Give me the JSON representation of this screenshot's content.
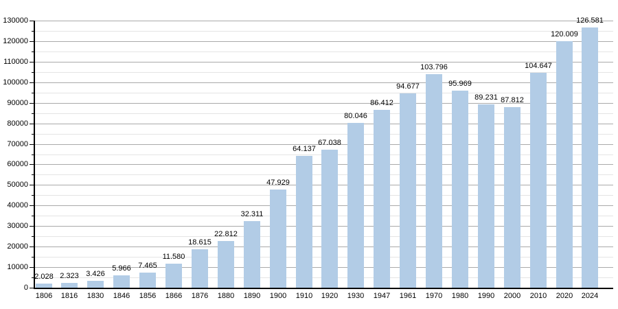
{
  "chart_data": {
    "type": "bar",
    "title": "",
    "xlabel": "",
    "ylabel": "",
    "categories": [
      "1806",
      "1816",
      "1830",
      "1846",
      "1856",
      "1866",
      "1876",
      "1880",
      "1890",
      "1900",
      "1910",
      "1920",
      "1930",
      "1947",
      "1961",
      "1970",
      "1980",
      "1990",
      "2000",
      "2010",
      "2020",
      "2024"
    ],
    "values": [
      2028,
      2323,
      3426,
      5966,
      7465,
      11580,
      18615,
      22812,
      32311,
      47929,
      64137,
      67038,
      80046,
      86412,
      94677,
      103796,
      95969,
      89231,
      87812,
      104647,
      120009,
      126581
    ],
    "value_labels": [
      "2.028",
      "2.323",
      "3.426",
      "5.966",
      "7.465",
      "11.580",
      "18.615",
      "22.812",
      "32.311",
      "47.929",
      "64.137",
      "67.038",
      "80.046",
      "86.412",
      "94.677",
      "103.796",
      "95.969",
      "89.231",
      "87.812",
      "104.647",
      "120.009",
      "126.581"
    ],
    "ylim": [
      0,
      130000
    ],
    "y_major_step": 10000,
    "y_minor_step": 5000,
    "y_tick_labels": [
      "0",
      "10000",
      "20000",
      "30000",
      "40000",
      "50000",
      "60000",
      "70000",
      "80000",
      "90000",
      "100000",
      "110000",
      "120000",
      "130000"
    ],
    "grid": true,
    "legend": null,
    "colors": {
      "bar_fill": "#b2cce6",
      "grid_major": "#a9a9a9",
      "grid_minor": "#e4e4e4",
      "axis": "#000000",
      "text": "#000000",
      "background": "#ffffff"
    }
  }
}
